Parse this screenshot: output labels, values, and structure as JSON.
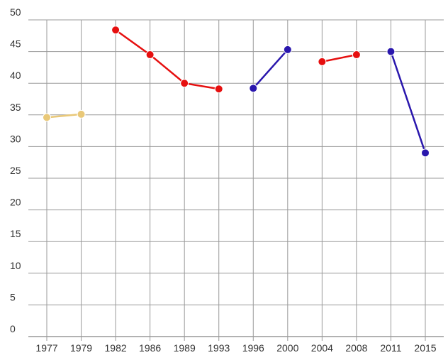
{
  "chart_data": {
    "type": "line",
    "categories": [
      "1977",
      "1979",
      "1982",
      "1986",
      "1989",
      "1993",
      "1996",
      "2000",
      "2004",
      "2008",
      "2011",
      "2015"
    ],
    "series": [
      {
        "color": "#e9c878",
        "values": [
          34.6,
          35.1,
          null,
          null,
          null,
          null,
          null,
          null,
          null,
          null,
          null,
          null
        ]
      },
      {
        "color": "#e60f0f",
        "values": [
          null,
          null,
          48.4,
          44.5,
          40.0,
          39.1,
          null,
          null,
          43.4,
          44.5,
          null,
          null
        ]
      },
      {
        "color": "#2a17ad",
        "values": [
          null,
          null,
          null,
          null,
          null,
          null,
          39.2,
          45.3,
          null,
          null,
          45.0,
          29.0
        ]
      }
    ],
    "ylim": [
      0,
      50
    ],
    "yticks": [
      0,
      5,
      10,
      15,
      20,
      25,
      30,
      35,
      40,
      45,
      50
    ],
    "grid": true
  }
}
